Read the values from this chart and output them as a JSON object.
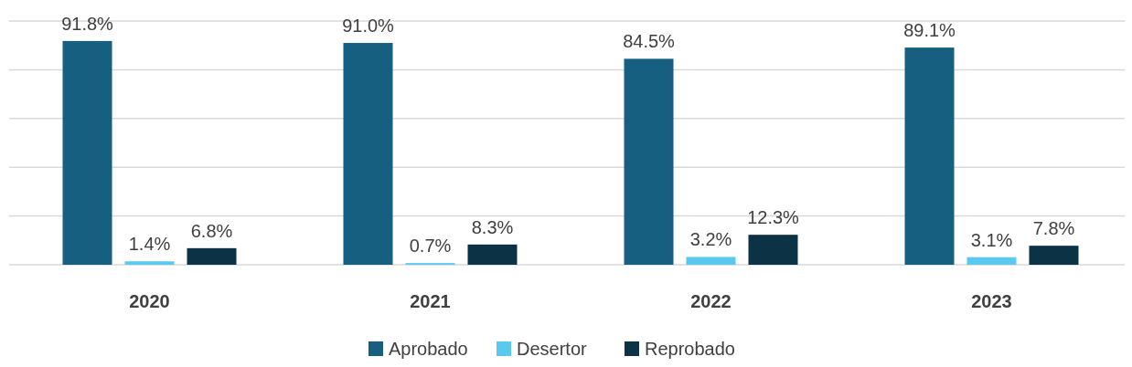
{
  "chart_data": {
    "type": "bar",
    "categories": [
      "2020",
      "2021",
      "2022",
      "2023"
    ],
    "series": [
      {
        "name": "Aprobado",
        "color": "#165f80",
        "values": [
          91.8,
          91.0,
          84.5,
          89.1
        ],
        "value_labels": [
          "91.8%",
          "91.0%",
          "84.5%",
          "89.1%"
        ]
      },
      {
        "name": "Desertor",
        "color": "#5bc8f0",
        "values": [
          1.4,
          0.7,
          3.2,
          3.1
        ],
        "value_labels": [
          "1.4%",
          "0.7%",
          "3.2%",
          "3.1%"
        ]
      },
      {
        "name": "Reprobado",
        "color": "#0c3245",
        "values": [
          6.8,
          8.3,
          12.3,
          7.8
        ],
        "value_labels": [
          "6.8%",
          "8.3%",
          "12.3%",
          "7.8%"
        ]
      }
    ],
    "ylim": [
      0,
      100
    ],
    "yticks": [
      {
        "value": 0,
        "label": null
      },
      {
        "value": 20,
        "label": null
      },
      {
        "value": 40,
        "label": null
      },
      {
        "value": 60,
        "label": null
      },
      {
        "value": 80,
        "label": null
      },
      {
        "value": 100,
        "label": null
      }
    ],
    "grid": "y",
    "legend": "bottom",
    "tick_labels": "x"
  }
}
